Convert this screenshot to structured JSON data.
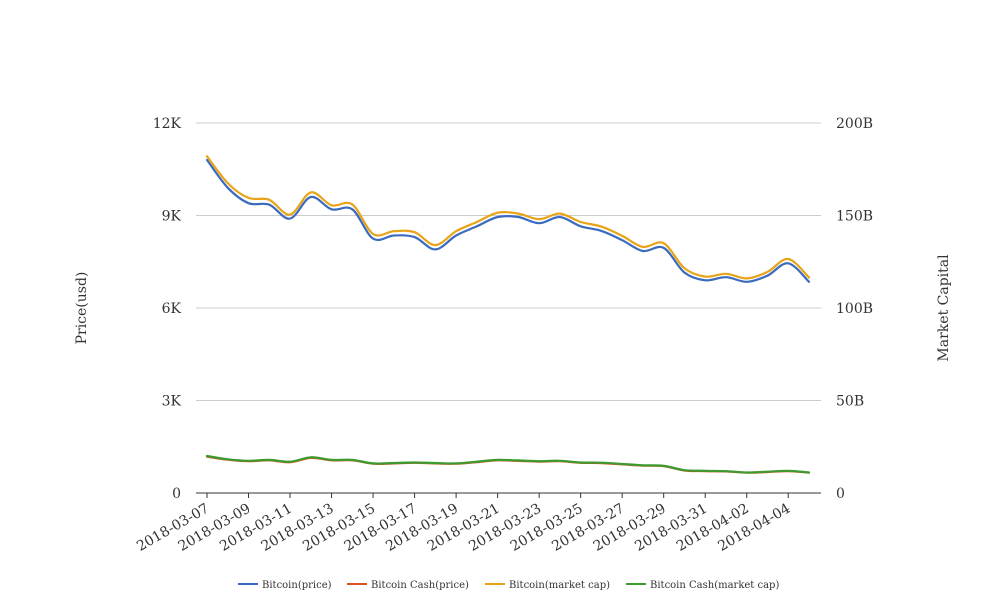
{
  "chart_data": {
    "type": "line",
    "title": "",
    "ylabel": "Price(usd)",
    "y2label": "Market Capital",
    "ylim": [
      0,
      12000
    ],
    "y2lim": [
      0,
      200000000000
    ],
    "yticks": [
      {
        "value": 0,
        "label": "0"
      },
      {
        "value": 3000,
        "label": "3K"
      },
      {
        "value": 6000,
        "label": "6K"
      },
      {
        "value": 9000,
        "label": "9K"
      },
      {
        "value": 12000,
        "label": "12K"
      }
    ],
    "y2ticks": [
      {
        "value": 0,
        "label": "0"
      },
      {
        "value": 50000000000,
        "label": "50B"
      },
      {
        "value": 100000000000,
        "label": "100B"
      },
      {
        "value": 150000000000,
        "label": "150B"
      },
      {
        "value": 200000000000,
        "label": "200B"
      }
    ],
    "x": [
      "2018-03-07",
      "2018-03-08",
      "2018-03-09",
      "2018-03-10",
      "2018-03-11",
      "2018-03-12",
      "2018-03-13",
      "2018-03-14",
      "2018-03-15",
      "2018-03-16",
      "2018-03-17",
      "2018-03-18",
      "2018-03-19",
      "2018-03-20",
      "2018-03-21",
      "2018-03-22",
      "2018-03-23",
      "2018-03-24",
      "2018-03-25",
      "2018-03-26",
      "2018-03-27",
      "2018-03-28",
      "2018-03-29",
      "2018-03-30",
      "2018-03-31",
      "2018-04-01",
      "2018-04-02",
      "2018-04-03",
      "2018-04-04",
      "2018-04-05"
    ],
    "xticks": [
      "2018-03-07",
      "2018-03-09",
      "2018-03-11",
      "2018-03-13",
      "2018-03-15",
      "2018-03-17",
      "2018-03-19",
      "2018-03-21",
      "2018-03-23",
      "2018-03-25",
      "2018-03-27",
      "2018-03-29",
      "2018-03-31",
      "2018-04-02",
      "2018-04-04"
    ],
    "grid": true,
    "legend_position": "bottom",
    "series": [
      {
        "name": "Bitcoin(price)",
        "axis": "left",
        "color": "#3b6bbf",
        "values": [
          10800,
          9900,
          9400,
          9350,
          8900,
          9600,
          9200,
          9200,
          8250,
          8350,
          8300,
          7900,
          8350,
          8650,
          8950,
          8950,
          8750,
          8950,
          8650,
          8500,
          8200,
          7850,
          7950,
          7150,
          6900,
          7000,
          6850,
          7050,
          7450,
          6850
        ]
      },
      {
        "name": "Bitcoin Cash(price)",
        "axis": "left",
        "color": "#d9531e",
        "values": [
          1180,
          1080,
          1030,
          1060,
          1000,
          1140,
          1060,
          1060,
          950,
          960,
          980,
          960,
          950,
          1000,
          1060,
          1040,
          1020,
          1030,
          980,
          970,
          930,
          890,
          870,
          730,
          710,
          700,
          660,
          680,
          710,
          660
        ]
      },
      {
        "name": "Bitcoin(market cap)",
        "axis": "right",
        "color": "#e8a317",
        "values": [
          182000000000,
          167500000000,
          159500000000,
          158500000000,
          150500000000,
          162500000000,
          155500000000,
          156000000000,
          140000000000,
          141500000000,
          141000000000,
          134000000000,
          141500000000,
          146500000000,
          151500000000,
          151000000000,
          148000000000,
          151000000000,
          146500000000,
          144000000000,
          139000000000,
          133000000000,
          135000000000,
          121500000000,
          117000000000,
          118500000000,
          116000000000,
          119500000000,
          126500000000,
          116500000000
        ]
      },
      {
        "name": "Bitcoin Cash(market cap)",
        "axis": "right",
        "color": "#3c9a2f",
        "values": [
          20000000000,
          18200000000,
          17400000000,
          17900000000,
          16900000000,
          19300000000,
          17900000000,
          17900000000,
          16000000000,
          16200000000,
          16500000000,
          16200000000,
          16000000000,
          16900000000,
          17900000000,
          17600000000,
          17200000000,
          17400000000,
          16500000000,
          16400000000,
          15700000000,
          15000000000,
          14700000000,
          12300000000,
          12000000000,
          11800000000,
          11100000000,
          11500000000,
          12000000000,
          11100000000
        ]
      }
    ]
  }
}
